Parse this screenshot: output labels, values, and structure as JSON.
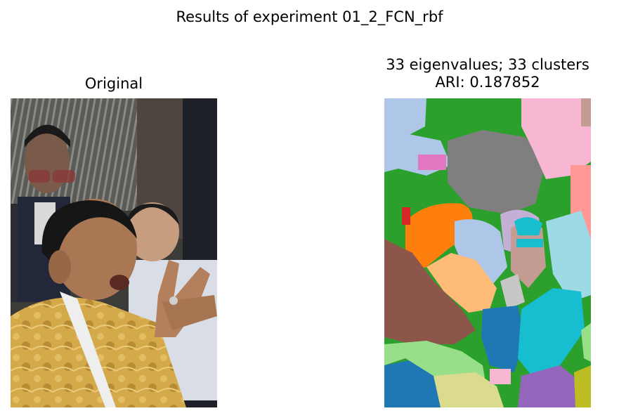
{
  "figure": {
    "suptitle": "Results of experiment 01_2_FCN_rbf"
  },
  "left_panel": {
    "title": "Original"
  },
  "right_panel": {
    "title_line1": "33 eigenvalues; 33 clusters",
    "title_line2": "ARI: 0.187852"
  },
  "colors": {
    "background": "#ffffff",
    "segment_green": "#2ca02c",
    "segment_light_blue": "#aec7e8",
    "segment_gray": "#7f7f7f",
    "segment_pink": "#f7b6d2",
    "segment_orange": "#ff7f0e",
    "segment_brown": "#8c564b",
    "segment_cyan": "#17becf",
    "segment_blue": "#1f77b4",
    "segment_olive_light": "#dbdb8d",
    "segment_purple": "#9467bd",
    "segment_light_orange": "#ffbb78",
    "segment_salmon": "#ff9896",
    "segment_light_green": "#98df8a",
    "segment_light_cyan": "#9edae5",
    "segment_lavender": "#c5b0d5",
    "segment_tan": "#c49c94",
    "segment_red": "#d62728",
    "segment_magenta": "#e377c2",
    "segment_olive": "#bcbd22",
    "segment_light_gray": "#c7c7c7"
  }
}
